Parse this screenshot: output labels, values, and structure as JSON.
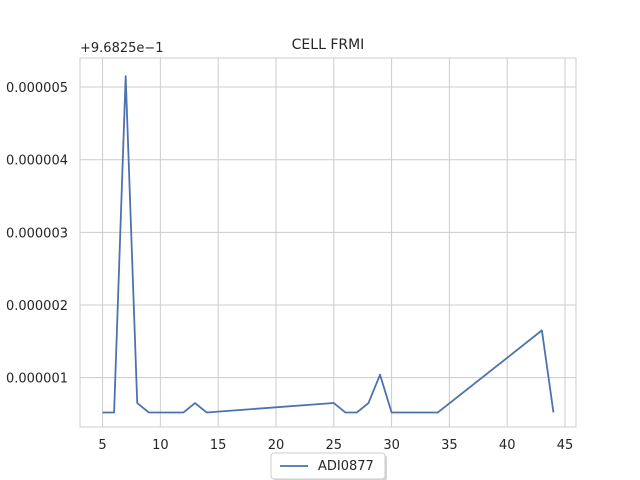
{
  "chart_data": {
    "type": "line",
    "title": "CELL FRMI",
    "xlabel": "",
    "ylabel": "",
    "y_offset_label": "+9.6825e−1",
    "xlim": [
      3.05,
      45.95
    ],
    "ylim": [
      3.2e-07,
      5.4e-06
    ],
    "x_ticks": [
      5,
      10,
      15,
      20,
      25,
      30,
      35,
      40,
      45
    ],
    "x_tick_labels": [
      "5",
      "10",
      "15",
      "20",
      "25",
      "30",
      "35",
      "40",
      "45"
    ],
    "y_ticks": [
      1e-06,
      2e-06,
      3e-06,
      4e-06,
      5e-06
    ],
    "y_tick_labels": [
      "0.000001",
      "0.000002",
      "0.000003",
      "0.000004",
      "0.000005"
    ],
    "grid": true,
    "legend_position": "bottom-center",
    "series": [
      {
        "name": "ADI0877",
        "color": "#4c72b0",
        "x": [
          5,
          6,
          7,
          8,
          9,
          10,
          11,
          12,
          13,
          14,
          25,
          26,
          27,
          28,
          29,
          30,
          31,
          32,
          33,
          34,
          43,
          44
        ],
        "y": [
          5.2e-07,
          5.2e-07,
          5.15e-06,
          6.5e-07,
          5.2e-07,
          5.2e-07,
          5.2e-07,
          5.2e-07,
          6.5e-07,
          5.2e-07,
          6.5e-07,
          5.2e-07,
          5.2e-07,
          6.5e-07,
          1.04e-06,
          5.2e-07,
          5.2e-07,
          5.2e-07,
          5.2e-07,
          5.2e-07,
          1.65e-06,
          5.2e-07
        ]
      }
    ]
  }
}
